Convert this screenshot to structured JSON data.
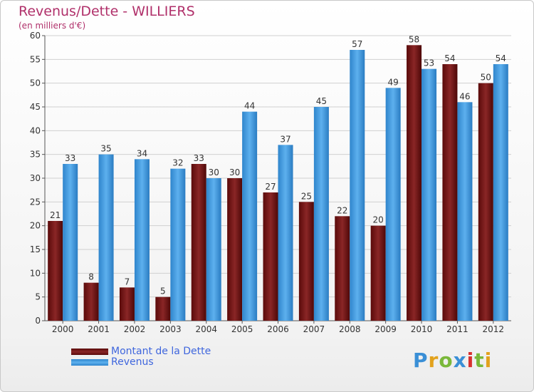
{
  "title": "Revenus/Dette - WILLIERS",
  "subtitle": "(en milliers d'€)",
  "logo_text": "Proxiti",
  "colors": {
    "debt": "#7a1a1a",
    "revenue": "#3b95dd",
    "title": "#b0306a",
    "legend_text": "#3f66dd",
    "grid": "#cccccc"
  },
  "chart_data": {
    "type": "bar",
    "title": "Revenus/Dette - WILLIERS",
    "subtitle": "(en milliers d'€)",
    "xlabel": "",
    "ylabel": "",
    "ylim": [
      0,
      60
    ],
    "yticks": [
      0,
      5,
      10,
      15,
      20,
      25,
      30,
      35,
      40,
      45,
      50,
      55,
      60
    ],
    "grid": true,
    "legend_position": "bottom-left",
    "categories": [
      "2000",
      "2001",
      "2002",
      "2003",
      "2004",
      "2005",
      "2006",
      "2007",
      "2008",
      "2009",
      "2010",
      "2011",
      "2012"
    ],
    "series": [
      {
        "name": "Montant de la Dette",
        "values": [
          21,
          8,
          7,
          5,
          33,
          30,
          27,
          25,
          22,
          20,
          58,
          54,
          50
        ]
      },
      {
        "name": "Revenus",
        "values": [
          33,
          35,
          34,
          32,
          30,
          44,
          37,
          45,
          57,
          49,
          53,
          46,
          54
        ]
      }
    ]
  }
}
